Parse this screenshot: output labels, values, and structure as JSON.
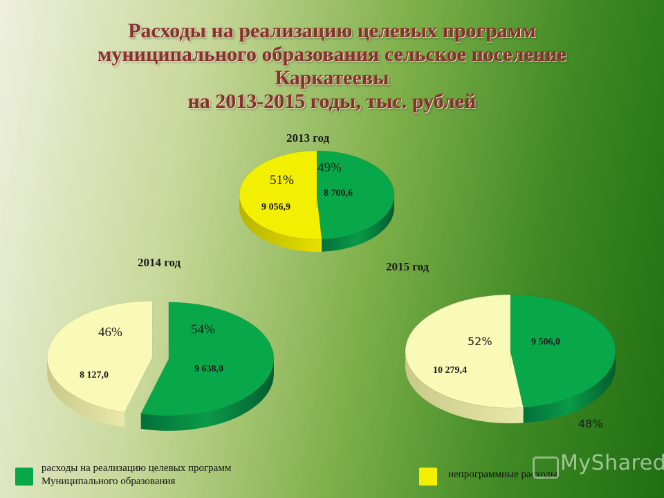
{
  "title_lines": [
    "Расходы на реализацию целевых программ",
    "муниципального образования сельское поселение",
    "Каркатеевы",
    "на 2013-2015 годы, тыс. рублей"
  ],
  "colors": {
    "program": "#08a84a",
    "non_program_2013": "#f2f000",
    "non_program_cream": "#fafab8"
  },
  "chart_data": [
    {
      "type": "pie",
      "title": "2013 год",
      "series": [
        {
          "name": "расходы на реализацию целевых программ Муниципального образования",
          "value": 8700.6,
          "value_label": "8 700,6",
          "percent_label": "49%"
        },
        {
          "name": "непрограммные расходы",
          "value": 9056.9,
          "value_label": "9 056,9",
          "percent_label": "51%"
        }
      ]
    },
    {
      "type": "pie",
      "title": "2014 год",
      "series": [
        {
          "name": "расходы на реализацию целевых программ Муниципального образования",
          "value": 9638.0,
          "value_label": "9 638,0",
          "percent_label": "54%"
        },
        {
          "name": "непрограммные расходы",
          "value": 8127.0,
          "value_label": "8 127,0",
          "percent_label": "46%"
        }
      ]
    },
    {
      "type": "pie",
      "title": "2015 год",
      "series": [
        {
          "name": "расходы на реализацию целевых программ Муниципального образования",
          "value": 9506.0,
          "value_label": "9 506,0",
          "percent_label": "48%"
        },
        {
          "name": "непрограммные расходы",
          "value": 10279.4,
          "value_label": "10 279,4",
          "percent_label": "52%"
        }
      ]
    }
  ],
  "legend": [
    {
      "line1": "расходы на реализацию целевых программ",
      "line2": "Муниципального образования"
    },
    {
      "line1": "непрограммные расходы"
    }
  ],
  "watermark": "MyShared"
}
